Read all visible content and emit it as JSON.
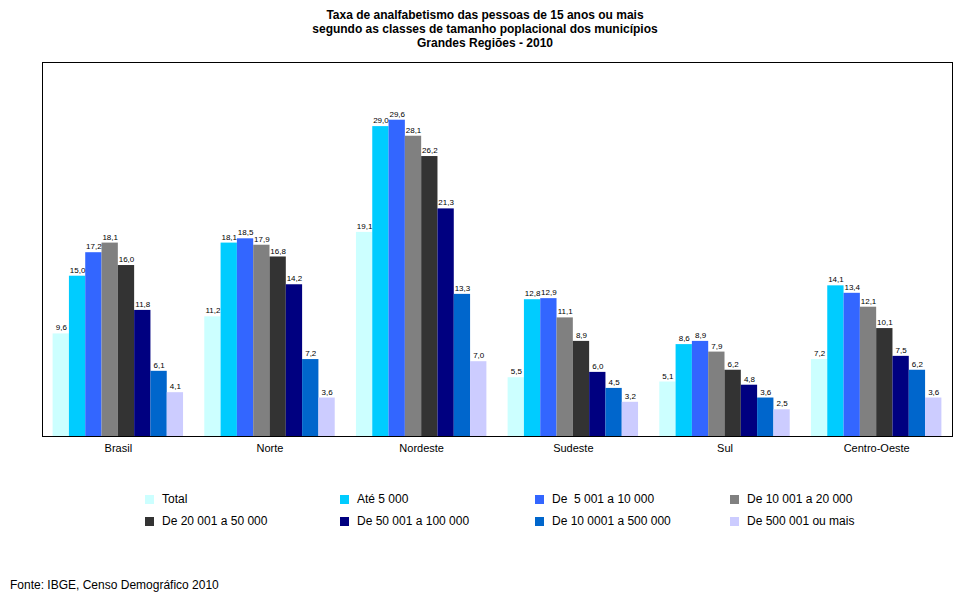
{
  "chart_data": {
    "type": "bar",
    "title": "Taxa de analfabetismo das pessoas de 15 anos ou mais",
    "subtitle": [
      "segundo as classes de tamanho poplacional dos municípios",
      "Grandes Regiões - 2010"
    ],
    "caption": "Fonte: IBGE, Censo Demográfico 2010",
    "categories": [
      "Brasil",
      "Norte",
      "Nordeste",
      "Sudeste",
      "Sul",
      "Centro-Oeste"
    ],
    "ylim": [
      0,
      35
    ],
    "tick_labels": "x",
    "grid": false,
    "legend": "bottom",
    "data_labels": true,
    "series": [
      {
        "name": "Total",
        "color": "#ccffff",
        "values": [
          9.6,
          11.2,
          19.1,
          5.5,
          5.1,
          7.2
        ],
        "value_labels": [
          "9,6",
          "11,2",
          "19,1",
          "5,5",
          "5,1",
          "7,2"
        ]
      },
      {
        "name": "Até 5 000",
        "color": "#00ccff",
        "values": [
          15.0,
          18.1,
          29.0,
          12.8,
          8.6,
          14.1
        ],
        "value_labels": [
          "15,0",
          "18,1",
          "29,0",
          "12,8",
          "8,6",
          "14,1"
        ]
      },
      {
        "name": "De  5 001 a 10 000",
        "color": "#3366ff",
        "values": [
          17.2,
          18.5,
          29.6,
          12.9,
          8.9,
          13.4
        ],
        "value_labels": [
          "17,2",
          "18,5",
          "29,6",
          "12,9",
          "8,9",
          "13,4"
        ]
      },
      {
        "name": "De 10 001 a 20 000",
        "color": "#808080",
        "values": [
          18.1,
          17.9,
          28.1,
          11.1,
          7.9,
          12.1
        ],
        "value_labels": [
          "18,1",
          "17,9",
          "28,1",
          "11,1",
          "7,9",
          "12,1"
        ]
      },
      {
        "name": "De 20 001 a 50 000",
        "color": "#333333",
        "values": [
          16.0,
          16.8,
          26.2,
          8.9,
          6.2,
          10.1
        ],
        "value_labels": [
          "16,0",
          "16,8",
          "26,2",
          "8,9",
          "6,2",
          "10,1"
        ]
      },
      {
        "name": "De 50 001 a 100 000",
        "color": "#000080",
        "values": [
          11.8,
          14.2,
          21.3,
          6.0,
          4.8,
          7.5
        ],
        "value_labels": [
          "11,8",
          "14,2",
          "21,3",
          "6,0",
          "4,8",
          "7,5"
        ]
      },
      {
        "name": "De 10 0001 a 500 000",
        "color": "#0066cc",
        "values": [
          6.1,
          7.2,
          13.3,
          4.5,
          3.6,
          6.2
        ],
        "value_labels": [
          "6,1",
          "7,2",
          "13,3",
          "4,5",
          "3,6",
          "6,2"
        ]
      },
      {
        "name": "De 500 001 ou mais",
        "color": "#ccccff",
        "values": [
          4.1,
          3.6,
          7.0,
          3.2,
          2.5,
          3.6
        ],
        "value_labels": [
          "4,1",
          "3,6",
          "7,0",
          "3,2",
          "2,5",
          "3,6"
        ]
      }
    ]
  }
}
